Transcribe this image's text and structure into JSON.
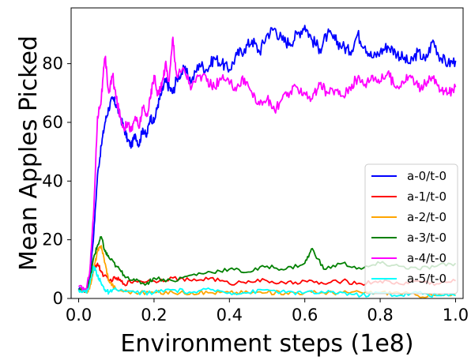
{
  "chart_data": {
    "type": "line",
    "title": "",
    "xlabel": "Environment steps (1e8)",
    "ylabel": "Mean Apples Picked",
    "xlim": [
      -0.02,
      1.02
    ],
    "ylim": [
      0,
      99
    ],
    "xticks": [
      0.0,
      0.2,
      0.4,
      0.6,
      0.8,
      1.0
    ],
    "xtick_labels": [
      "0.0",
      "0.2",
      "0.4",
      "0.6",
      "0.8",
      "1.0"
    ],
    "yticks": [
      0,
      20,
      40,
      60,
      80
    ],
    "ytick_labels": [
      "0",
      "20",
      "40",
      "60",
      "80"
    ],
    "grid": false,
    "legend": "lower-right",
    "series": [
      {
        "name": "a-0/t-0",
        "color": "#0000ff",
        "x": [
          0.0,
          0.02,
          0.03,
          0.04,
          0.05,
          0.06,
          0.07,
          0.08,
          0.09,
          0.1,
          0.11,
          0.12,
          0.13,
          0.14,
          0.15,
          0.16,
          0.17,
          0.18,
          0.19,
          0.2,
          0.21,
          0.22,
          0.23,
          0.24,
          0.25,
          0.26,
          0.28,
          0.3,
          0.32,
          0.34,
          0.36,
          0.38,
          0.4,
          0.42,
          0.44,
          0.46,
          0.48,
          0.5,
          0.52,
          0.54,
          0.56,
          0.58,
          0.6,
          0.62,
          0.64,
          0.66,
          0.68,
          0.7,
          0.72,
          0.74,
          0.76,
          0.78,
          0.8,
          0.82,
          0.84,
          0.86,
          0.88,
          0.9,
          0.92,
          0.94,
          0.96,
          0.98,
          1.0
        ],
        "y": [
          3,
          3,
          8,
          22,
          42,
          52,
          60,
          65,
          68,
          66,
          62,
          58,
          54,
          52,
          56,
          52,
          58,
          55,
          62,
          60,
          66,
          70,
          74,
          72,
          70,
          75,
          78,
          74,
          80,
          78,
          82,
          80,
          78,
          83,
          85,
          88,
          84,
          90,
          92,
          88,
          87,
          90,
          93,
          88,
          85,
          90,
          88,
          86,
          84,
          90,
          86,
          82,
          84,
          86,
          84,
          82,
          80,
          84,
          81,
          88,
          82,
          80,
          81
        ]
      },
      {
        "name": "a-1/t-0",
        "color": "#ff0000",
        "x": [
          0.0,
          0.02,
          0.03,
          0.04,
          0.05,
          0.06,
          0.08,
          0.1,
          0.12,
          0.15,
          0.2,
          0.25,
          0.3,
          0.35,
          0.4,
          0.45,
          0.5,
          0.55,
          0.6,
          0.65,
          0.7,
          0.75,
          0.8,
          0.85,
          0.9,
          0.95,
          1.0
        ],
        "y": [
          3,
          2,
          5,
          10,
          12,
          9,
          6,
          7,
          5,
          6,
          6,
          7,
          6,
          7,
          5,
          6,
          6,
          5,
          6,
          5,
          6,
          5,
          6,
          5,
          6,
          5,
          6
        ]
      },
      {
        "name": "a-2/t-0",
        "color": "#ffa500",
        "x": [
          0.0,
          0.02,
          0.03,
          0.04,
          0.05,
          0.06,
          0.07,
          0.08,
          0.1,
          0.15,
          0.2,
          0.25,
          0.3,
          0.35,
          0.4,
          0.45,
          0.5,
          0.55,
          0.6,
          0.65,
          0.7,
          0.75,
          0.8,
          0.85,
          0.9,
          0.95,
          1.0
        ],
        "y": [
          3,
          2,
          4,
          10,
          16,
          18,
          12,
          6,
          3,
          2,
          2,
          2,
          2,
          2,
          2,
          2,
          2,
          2,
          2,
          2,
          2,
          2,
          2,
          2,
          1,
          1,
          1
        ]
      },
      {
        "name": "a-3/t-0",
        "color": "#008000",
        "x": [
          0.0,
          0.02,
          0.03,
          0.04,
          0.05,
          0.06,
          0.07,
          0.08,
          0.1,
          0.12,
          0.15,
          0.18,
          0.2,
          0.25,
          0.3,
          0.35,
          0.4,
          0.45,
          0.5,
          0.55,
          0.6,
          0.62,
          0.65,
          0.7,
          0.75,
          0.8,
          0.85,
          0.9,
          0.95,
          1.0
        ],
        "y": [
          3,
          3,
          6,
          14,
          18,
          21,
          16,
          14,
          11,
          8,
          6,
          5,
          7,
          6,
          8,
          9,
          10,
          9,
          11,
          10,
          12,
          17,
          10,
          12,
          10,
          12,
          11,
          10,
          11,
          12
        ]
      },
      {
        "name": "a-4/t-0",
        "color": "#ff00ff",
        "x": [
          0.0,
          0.02,
          0.03,
          0.04,
          0.05,
          0.06,
          0.07,
          0.08,
          0.09,
          0.1,
          0.11,
          0.12,
          0.13,
          0.14,
          0.15,
          0.16,
          0.17,
          0.18,
          0.19,
          0.2,
          0.21,
          0.22,
          0.23,
          0.24,
          0.25,
          0.26,
          0.28,
          0.3,
          0.32,
          0.34,
          0.36,
          0.38,
          0.4,
          0.42,
          0.44,
          0.46,
          0.48,
          0.5,
          0.52,
          0.54,
          0.56,
          0.58,
          0.6,
          0.62,
          0.64,
          0.66,
          0.68,
          0.7,
          0.72,
          0.74,
          0.76,
          0.78,
          0.8,
          0.82,
          0.84,
          0.86,
          0.88,
          0.9,
          0.92,
          0.94,
          0.96,
          0.98,
          1.0
        ],
        "y": [
          4,
          3,
          10,
          30,
          62,
          68,
          82,
          70,
          76,
          68,
          62,
          58,
          60,
          57,
          62,
          58,
          65,
          62,
          68,
          76,
          70,
          72,
          80,
          74,
          89,
          76,
          78,
          72,
          76,
          74,
          72,
          75,
          73,
          72,
          75,
          70,
          66,
          68,
          64,
          68,
          70,
          72,
          70,
          68,
          73,
          70,
          71,
          69,
          72,
          75,
          73,
          76,
          74,
          77,
          72,
          74,
          76,
          72,
          73,
          75,
          71,
          70,
          72
        ]
      },
      {
        "name": "a-5/t-0",
        "color": "#00ffff",
        "x": [
          0.0,
          0.02,
          0.03,
          0.04,
          0.05,
          0.06,
          0.07,
          0.08,
          0.1,
          0.15,
          0.2,
          0.25,
          0.3,
          0.35,
          0.4,
          0.45,
          0.5,
          0.55,
          0.6,
          0.65,
          0.7,
          0.75,
          0.8,
          0.85,
          0.9,
          0.95,
          1.0
        ],
        "y": [
          3,
          2,
          5,
          11,
          8,
          5,
          3,
          2,
          3,
          2,
          2,
          3,
          2,
          3,
          2,
          2,
          3,
          2,
          2,
          2,
          2,
          1,
          2,
          1,
          2,
          1,
          1
        ]
      }
    ]
  }
}
